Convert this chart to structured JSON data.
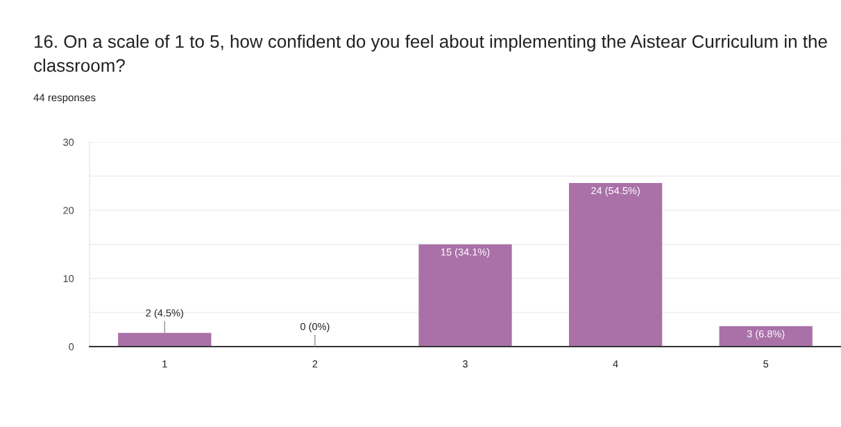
{
  "chart_data": {
    "type": "bar",
    "title": "16. On a scale of 1 to 5, how confident do you feel about implementing the Aistear Curriculum in the classroom?",
    "subtitle": "44 responses",
    "categories": [
      "1",
      "2",
      "3",
      "4",
      "5"
    ],
    "values": [
      2,
      0,
      15,
      24,
      3
    ],
    "color": "#a971a8",
    "value_labels": [
      "2 (4.5%)",
      "0 (0%)",
      "15 (34.1%)",
      "24 (54.5%)",
      "3 (6.8%)"
    ],
    "ylim": [
      0,
      30
    ],
    "yticks": [
      0,
      {
        "value": 5,
        "label": null
      },
      10,
      {
        "value": 15,
        "label": null
      },
      20,
      {
        "value": 25,
        "label": null
      },
      30
    ],
    "grid": "y"
  }
}
